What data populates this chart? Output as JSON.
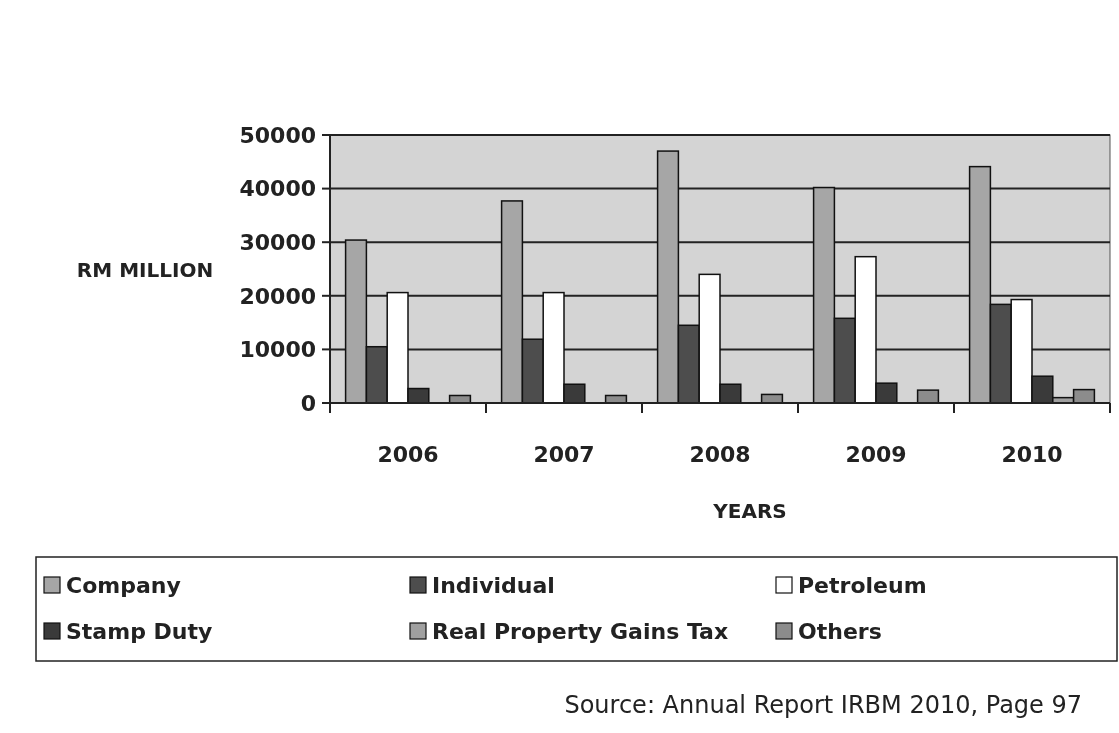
{
  "chart_data": {
    "type": "bar",
    "xlabel": "YEARS",
    "ylabel": "RM MILLION",
    "categories": [
      "2006",
      "2007",
      "2008",
      "2009",
      "2010"
    ],
    "series": [
      {
        "name": "Company",
        "color": "#a6a6a6",
        "values": [
          30400,
          37700,
          47000,
          40200,
          44100
        ]
      },
      {
        "name": "Individual",
        "color": "#4d4d4d",
        "values": [
          10500,
          11900,
          14500,
          15800,
          18400
        ]
      },
      {
        "name": "Petroleum",
        "color": "#ffffff",
        "values": [
          20600,
          20600,
          24000,
          27300,
          19300
        ]
      },
      {
        "name": "Stamp Duty",
        "color": "#3a3a3a",
        "values": [
          2700,
          3500,
          3500,
          3700,
          5000
        ]
      },
      {
        "name": "Real Property Gains Tax",
        "color": "#a0a0a0",
        "values": [
          null,
          null,
          null,
          null,
          1000
        ]
      },
      {
        "name": "Others",
        "color": "#8c8c8c",
        "values": [
          1400,
          1400,
          1600,
          2400,
          2500
        ]
      }
    ],
    "ylim": [
      0,
      50000
    ],
    "yticks": [
      0,
      10000,
      20000,
      30000,
      40000,
      50000
    ],
    "grid": "y",
    "legend": "bottom",
    "annotations": [
      "Source: Annual Report IRBM 2010, Page 97"
    ]
  }
}
